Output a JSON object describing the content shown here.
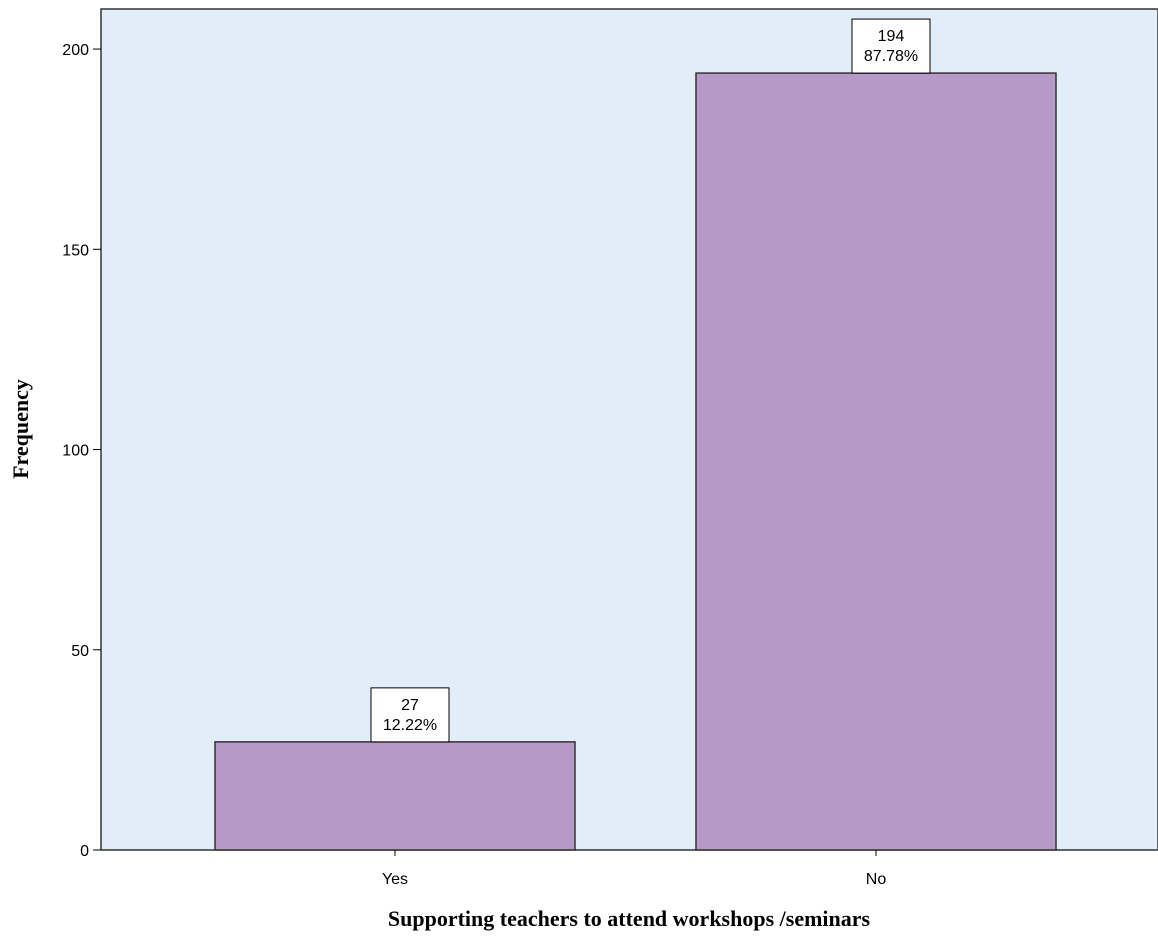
{
  "chart_data": {
    "type": "bar",
    "title": "",
    "xlabel": "Supporting teachers to attend workshops /seminars",
    "ylabel": "Frequency",
    "categories": [
      "Yes",
      "No"
    ],
    "values": [
      27,
      194
    ],
    "percent_labels": [
      "12.22%",
      "87.78%"
    ],
    "ylim": [
      0,
      210
    ],
    "yticks": [
      0,
      50,
      100,
      150,
      200
    ],
    "grid": false,
    "legend": "none",
    "colors": {
      "bar_fill": "#b799c8",
      "bar_stroke": "#333333",
      "plot_background": "#e2edfa",
      "frame": "#333333"
    }
  }
}
